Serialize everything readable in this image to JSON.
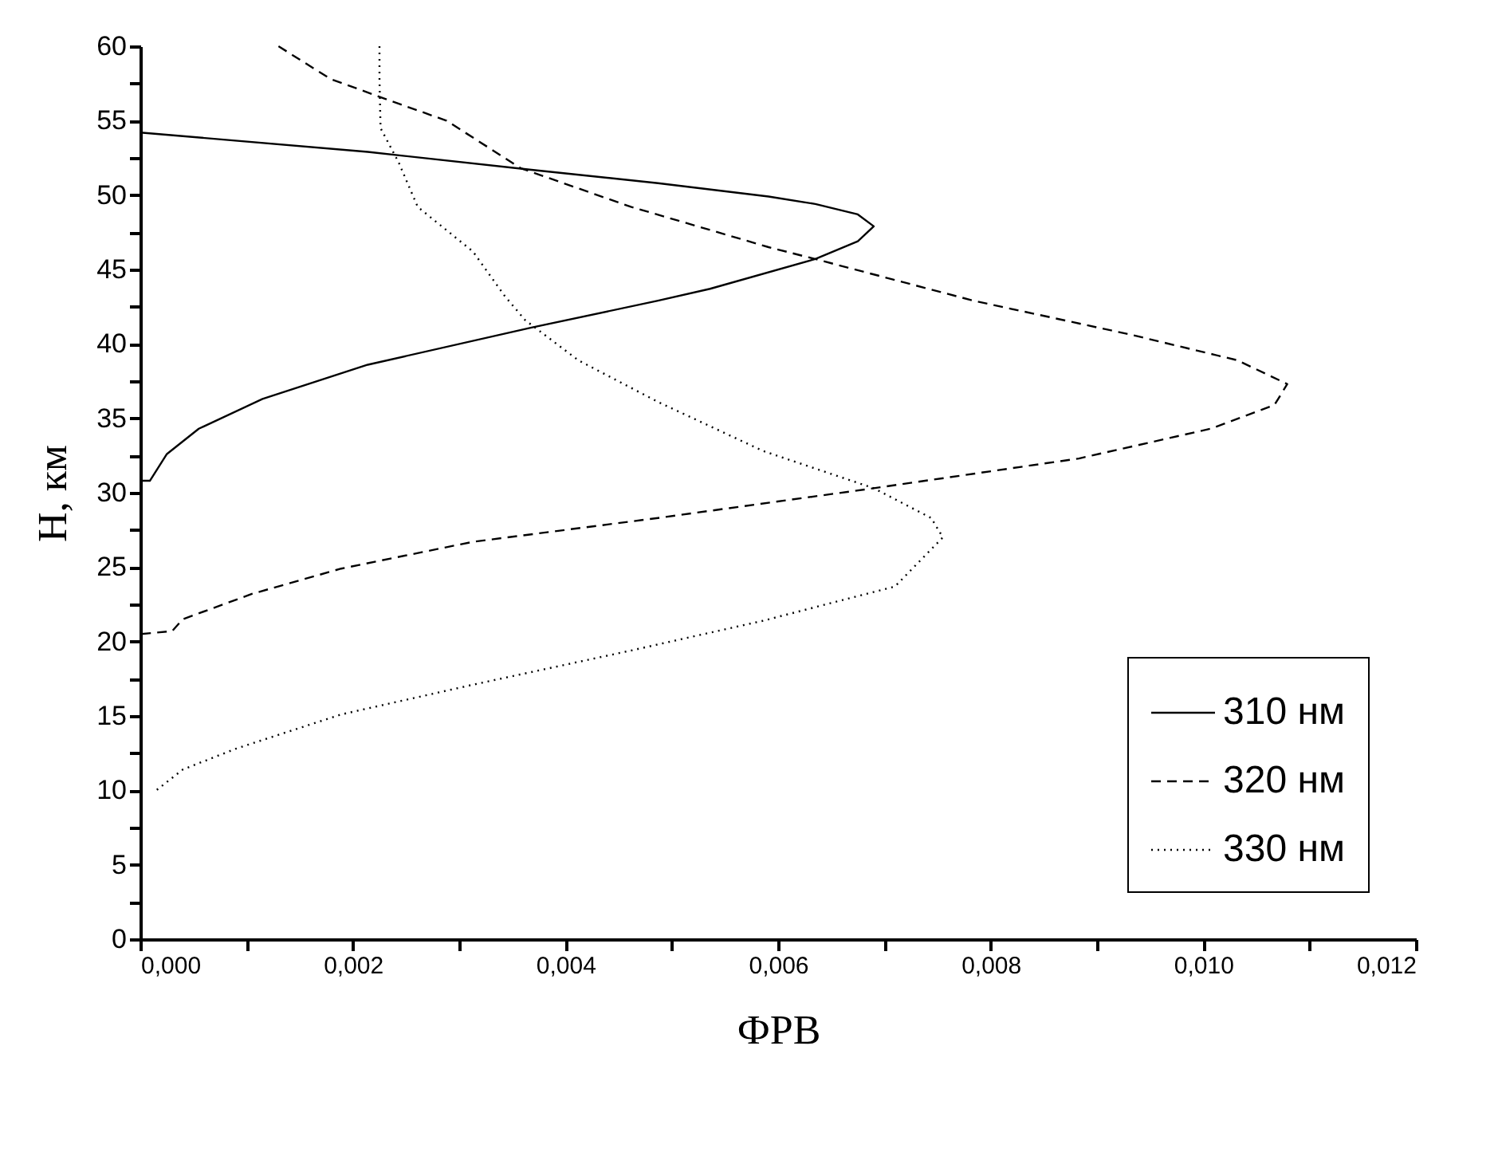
{
  "chart_data": {
    "type": "line",
    "xlabel": "ФРВ",
    "ylabel": "Н, км",
    "legend": "bottom right",
    "grid": false,
    "marker": "none",
    "xlim": [
      0,
      0.012
    ],
    "ylim": [
      0,
      60
    ],
    "xticks": [
      {
        "value": 0,
        "label": "0,000"
      },
      {
        "value": 0.001,
        "label": null
      },
      {
        "value": 0.002,
        "label": "0,002"
      },
      {
        "value": 0.003,
        "label": null
      },
      {
        "value": 0.004,
        "label": "0,004"
      },
      {
        "value": 0.005,
        "label": null
      },
      {
        "value": 0.006,
        "label": "0,006"
      },
      {
        "value": 0.007,
        "label": null
      },
      {
        "value": 0.008,
        "label": "0,008"
      },
      {
        "value": 0.009,
        "label": null
      },
      {
        "value": 0.01,
        "label": "0,010"
      },
      {
        "value": 0.011,
        "label": null
      },
      {
        "value": 0.012,
        "label": "0,012"
      }
    ],
    "yticks": [
      0,
      {
        "value": 2.5,
        "label": null
      },
      5,
      {
        "value": 7.5,
        "label": null
      },
      10,
      {
        "value": 12.5,
        "label": null
      },
      15,
      {
        "value": 17.5,
        "label": null
      },
      20,
      {
        "value": 22.5,
        "label": null
      },
      25,
      {
        "value": 27.5,
        "label": null
      },
      30,
      {
        "value": 32.5,
        "label": null
      },
      35,
      {
        "value": 37.5,
        "label": null
      },
      40,
      {
        "value": 42.5,
        "label": null
      },
      45,
      {
        "value": 47.5,
        "label": null
      },
      50,
      {
        "value": 52.5,
        "label": null
      },
      55,
      {
        "value": 57.5,
        "label": null
      },
      60
    ],
    "series": [
      {
        "name": "310 нм",
        "color": "#000000",
        "line_style": "solid",
        "x": [
          0,
          0.00214,
          0.00368,
          0.00487,
          0.00591,
          0.00635,
          0.00675,
          0.0069,
          0.00675,
          0.00635,
          0.00536,
          0.00487,
          0.00368,
          0.00214,
          0.00115,
          0.00055,
          0.00025,
          9e-05,
          0
        ],
        "values": [
          54.2,
          52.9,
          51.7,
          50.8,
          49.9,
          49.4,
          48.7,
          47.9,
          46.9,
          45.7,
          43.7,
          42.9,
          41.1,
          38.6,
          36.3,
          34.3,
          32.6,
          30.8,
          30.8
        ]
      },
      {
        "name": "320 нм",
        "color": "#000000",
        "line_style": "dashed",
        "x": [
          0.0013,
          0.00179,
          0.00229,
          0.00288,
          0.00358,
          0.00462,
          0.00591,
          0.00635,
          0.00784,
          0.00933,
          0.01032,
          0.01079,
          0.01067,
          0.01007,
          0.00883,
          0.0069,
          0.00487,
          0.00313,
          0.00189,
          0.00105,
          0.0004,
          0.0003,
          0
        ],
        "values": [
          60,
          57.8,
          56.5,
          55,
          51.8,
          49.2,
          46.5,
          45.7,
          42.9,
          40.6,
          38.9,
          37.3,
          35.9,
          34.3,
          32.3,
          30.3,
          28.3,
          26.7,
          24.9,
          23.2,
          21.5,
          20.7,
          20.5
        ]
      },
      {
        "name": "330 нм",
        "color": "#000000",
        "line_style": "dotted",
        "x": [
          0.00225,
          0.00225,
          0.00226,
          0.00243,
          0.00261,
          0.00313,
          0.00343,
          0.00362,
          0.00412,
          0.00487,
          0.00586,
          0.0069,
          0.00744,
          0.00755,
          0.0071,
          0.00586,
          0.00462,
          0.00313,
          0.00189,
          0.0009,
          0.0004,
          0.00015
        ],
        "values": [
          60,
          57.8,
          54.5,
          52.2,
          49.2,
          46.2,
          43.2,
          41.6,
          38.9,
          36.1,
          32.8,
          30.3,
          28.3,
          27,
          23.7,
          21.4,
          19.4,
          17.1,
          15.1,
          12.8,
          11.4,
          10
        ]
      }
    ]
  }
}
